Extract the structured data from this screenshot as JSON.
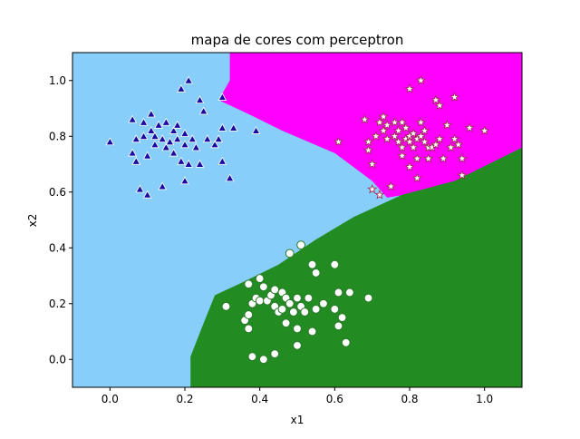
{
  "chart_data": {
    "type": "scatter",
    "title": "mapa de cores com perceptron",
    "xlabel": "x1",
    "ylabel": "x2",
    "xlim": [
      -0.1,
      1.1
    ],
    "ylim": [
      -0.1,
      1.1
    ],
    "xticks": [
      "0.0",
      "0.2",
      "0.4",
      "0.6",
      "0.8",
      "1.0"
    ],
    "yticks": [
      "0.0",
      "0.2",
      "0.4",
      "0.6",
      "0.8",
      "1.0"
    ],
    "grid": false,
    "legend": "none",
    "regions": [
      {
        "class": "triangle",
        "color": "#87cefa"
      },
      {
        "class": "star",
        "color": "#ff00ff"
      },
      {
        "class": "circle",
        "color": "#228b22"
      }
    ],
    "series": [
      {
        "marker": "triangle",
        "color": "#1a0aa0",
        "points": [
          [
            0.0,
            0.78
          ],
          [
            0.06,
            0.74
          ],
          [
            0.07,
            0.71
          ],
          [
            0.06,
            0.86
          ],
          [
            0.07,
            0.79
          ],
          [
            0.08,
            0.61
          ],
          [
            0.09,
            0.85
          ],
          [
            0.09,
            0.8
          ],
          [
            0.1,
            0.73
          ],
          [
            0.1,
            0.59
          ],
          [
            0.11,
            0.88
          ],
          [
            0.11,
            0.82
          ],
          [
            0.12,
            0.77
          ],
          [
            0.12,
            0.8
          ],
          [
            0.13,
            0.84
          ],
          [
            0.14,
            0.79
          ],
          [
            0.14,
            0.62
          ],
          [
            0.15,
            0.85
          ],
          [
            0.15,
            0.76
          ],
          [
            0.16,
            0.78
          ],
          [
            0.17,
            0.82
          ],
          [
            0.17,
            0.74
          ],
          [
            0.18,
            0.79
          ],
          [
            0.18,
            0.84
          ],
          [
            0.19,
            0.97
          ],
          [
            0.19,
            0.71
          ],
          [
            0.2,
            0.81
          ],
          [
            0.2,
            0.77
          ],
          [
            0.2,
            0.64
          ],
          [
            0.21,
            0.7
          ],
          [
            0.21,
            1.0
          ],
          [
            0.22,
            0.79
          ],
          [
            0.23,
            0.76
          ],
          [
            0.24,
            0.7
          ],
          [
            0.24,
            0.93
          ],
          [
            0.25,
            0.89
          ],
          [
            0.26,
            0.79
          ],
          [
            0.28,
            0.77
          ],
          [
            0.29,
            0.79
          ],
          [
            0.3,
            0.94
          ],
          [
            0.3,
            0.83
          ],
          [
            0.3,
            0.71
          ],
          [
            0.32,
            0.65
          ],
          [
            0.33,
            0.83
          ],
          [
            0.39,
            0.82
          ]
        ]
      },
      {
        "marker": "star",
        "color": "#ffffff",
        "points": [
          [
            0.61,
            0.78
          ],
          [
            0.68,
            0.86
          ],
          [
            0.69,
            0.78
          ],
          [
            0.69,
            0.75
          ],
          [
            0.7,
            0.7
          ],
          [
            0.7,
            0.61
          ],
          [
            0.71,
            0.8
          ],
          [
            0.72,
            0.85
          ],
          [
            0.72,
            0.59
          ],
          [
            0.73,
            0.82
          ],
          [
            0.73,
            0.87
          ],
          [
            0.74,
            0.79
          ],
          [
            0.74,
            0.84
          ],
          [
            0.75,
            0.62
          ],
          [
            0.76,
            0.8
          ],
          [
            0.76,
            0.85
          ],
          [
            0.77,
            0.82
          ],
          [
            0.77,
            0.78
          ],
          [
            0.78,
            0.76
          ],
          [
            0.78,
            0.73
          ],
          [
            0.78,
            0.85
          ],
          [
            0.79,
            0.79
          ],
          [
            0.79,
            0.83
          ],
          [
            0.8,
            0.8
          ],
          [
            0.8,
            0.78
          ],
          [
            0.8,
            0.69
          ],
          [
            0.8,
            0.97
          ],
          [
            0.81,
            0.76
          ],
          [
            0.81,
            0.81
          ],
          [
            0.82,
            0.79
          ],
          [
            0.82,
            0.72
          ],
          [
            0.82,
            0.65
          ],
          [
            0.83,
            1.0
          ],
          [
            0.83,
            0.8
          ],
          [
            0.83,
            0.85
          ],
          [
            0.84,
            0.78
          ],
          [
            0.84,
            0.82
          ],
          [
            0.85,
            0.76
          ],
          [
            0.85,
            0.72
          ],
          [
            0.86,
            0.76
          ],
          [
            0.87,
            0.77
          ],
          [
            0.87,
            0.93
          ],
          [
            0.88,
            0.91
          ],
          [
            0.88,
            0.79
          ],
          [
            0.89,
            0.72
          ],
          [
            0.9,
            0.84
          ],
          [
            0.91,
            0.76
          ],
          [
            0.92,
            0.94
          ],
          [
            0.92,
            0.79
          ],
          [
            0.93,
            0.77
          ],
          [
            0.94,
            0.72
          ],
          [
            0.94,
            0.66
          ],
          [
            0.96,
            0.83
          ],
          [
            1.0,
            0.82
          ]
        ]
      },
      {
        "marker": "circle",
        "color": "#ffffff",
        "points": [
          [
            0.31,
            0.19
          ],
          [
            0.36,
            0.14
          ],
          [
            0.37,
            0.16
          ],
          [
            0.37,
            0.27
          ],
          [
            0.37,
            0.11
          ],
          [
            0.38,
            0.2
          ],
          [
            0.38,
            0.01
          ],
          [
            0.39,
            0.22
          ],
          [
            0.4,
            0.29
          ],
          [
            0.4,
            0.21
          ],
          [
            0.41,
            0.0
          ],
          [
            0.41,
            0.26
          ],
          [
            0.42,
            0.21
          ],
          [
            0.43,
            0.23
          ],
          [
            0.44,
            0.19
          ],
          [
            0.44,
            0.25
          ],
          [
            0.44,
            0.02
          ],
          [
            0.45,
            0.17
          ],
          [
            0.46,
            0.24
          ],
          [
            0.46,
            0.18
          ],
          [
            0.47,
            0.13
          ],
          [
            0.47,
            0.22
          ],
          [
            0.48,
            0.2
          ],
          [
            0.48,
            0.38
          ],
          [
            0.49,
            0.17
          ],
          [
            0.5,
            0.05
          ],
          [
            0.5,
            0.22
          ],
          [
            0.5,
            0.11
          ],
          [
            0.51,
            0.41
          ],
          [
            0.51,
            0.19
          ],
          [
            0.52,
            0.17
          ],
          [
            0.53,
            0.22
          ],
          [
            0.54,
            0.1
          ],
          [
            0.54,
            0.34
          ],
          [
            0.55,
            0.31
          ],
          [
            0.55,
            0.18
          ],
          [
            0.57,
            0.2
          ],
          [
            0.6,
            0.18
          ],
          [
            0.6,
            0.34
          ],
          [
            0.61,
            0.24
          ],
          [
            0.61,
            0.12
          ],
          [
            0.62,
            0.15
          ],
          [
            0.63,
            0.06
          ],
          [
            0.64,
            0.24
          ],
          [
            0.69,
            0.22
          ]
        ]
      }
    ]
  }
}
